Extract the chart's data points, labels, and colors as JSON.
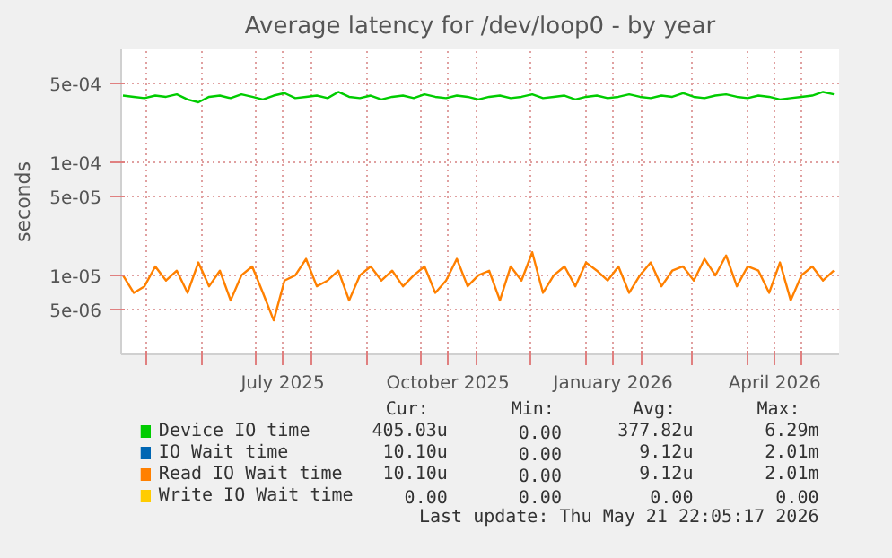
{
  "chart_data": {
    "type": "line",
    "title": "Average latency for /dev/loop0 - by year",
    "ylabel": "seconds",
    "log": "y",
    "grid": true,
    "legend": "bottom",
    "line_style": "solid",
    "marker": "none",
    "xlim": [
      "2025-04-17",
      "2026-05-21T22:05"
    ],
    "ylim": [
      2e-06,
      0.001
    ],
    "xticks": [
      {
        "value": "2025-05-01",
        "label": null
      },
      {
        "value": "2025-06-01",
        "label": null
      },
      {
        "value": "2025-07-01",
        "label": null
      },
      {
        "value": "2025-07-16",
        "label": "July 2025"
      },
      {
        "value": "2025-08-01",
        "label": null
      },
      {
        "value": "2025-09-01",
        "label": null
      },
      {
        "value": "2025-10-01",
        "label": null
      },
      {
        "value": "2025-10-16",
        "label": "October 2025"
      },
      {
        "value": "2025-11-01",
        "label": null
      },
      {
        "value": "2025-12-01",
        "label": null
      },
      {
        "value": "2026-01-01",
        "label": null
      },
      {
        "value": "2026-01-16",
        "label": "January 2026"
      },
      {
        "value": "2026-02-01",
        "label": null
      },
      {
        "value": "2026-03-01",
        "label": null
      },
      {
        "value": "2026-04-01",
        "label": null
      },
      {
        "value": "2026-04-16",
        "label": "April 2026"
      },
      {
        "value": "2026-05-01",
        "label": null
      }
    ],
    "yticks": [
      {
        "value": 5e-06,
        "label": "5e-06"
      },
      {
        "value": 1e-05,
        "label": "1e-05"
      },
      {
        "value": 5e-05,
        "label": "5e-05"
      },
      {
        "value": 0.0001,
        "label": "1e-04"
      },
      {
        "value": 0.0005,
        "label": "5e-04"
      }
    ],
    "x": [
      "2025-04-18",
      "2025-04-24",
      "2025-04-30",
      "2025-05-06",
      "2025-05-12",
      "2025-05-18",
      "2025-05-24",
      "2025-05-30",
      "2025-06-05",
      "2025-06-11",
      "2025-06-17",
      "2025-06-23",
      "2025-06-29",
      "2025-07-05",
      "2025-07-11",
      "2025-07-17",
      "2025-07-23",
      "2025-07-29",
      "2025-08-04",
      "2025-08-10",
      "2025-08-16",
      "2025-08-22",
      "2025-08-28",
      "2025-09-03",
      "2025-09-09",
      "2025-09-15",
      "2025-09-21",
      "2025-09-27",
      "2025-10-03",
      "2025-10-09",
      "2025-10-15",
      "2025-10-21",
      "2025-10-27",
      "2025-11-02",
      "2025-11-08",
      "2025-11-14",
      "2025-11-20",
      "2025-11-26",
      "2025-12-02",
      "2025-12-08",
      "2025-12-14",
      "2025-12-20",
      "2025-12-26",
      "2026-01-01",
      "2026-01-07",
      "2026-01-13",
      "2026-01-19",
      "2026-01-25",
      "2026-01-31",
      "2026-02-06",
      "2026-02-12",
      "2026-02-18",
      "2026-02-24",
      "2026-03-02",
      "2026-03-08",
      "2026-03-14",
      "2026-03-20",
      "2026-03-26",
      "2026-04-01",
      "2026-04-07",
      "2026-04-13",
      "2026-04-19",
      "2026-04-25",
      "2026-05-01",
      "2026-05-07",
      "2026-05-13",
      "2026-05-19"
    ],
    "series": [
      {
        "name": "Device IO time",
        "color": "#00cc00",
        "values": [
          0.00039,
          0.00038,
          0.00037,
          0.00039,
          0.00038,
          0.0004,
          0.00036,
          0.00034,
          0.00038,
          0.00039,
          0.00037,
          0.0004,
          0.00038,
          0.00036,
          0.00039,
          0.00041,
          0.00037,
          0.00038,
          0.00039,
          0.00037,
          0.00042,
          0.00038,
          0.00037,
          0.00039,
          0.00036,
          0.00038,
          0.00039,
          0.00037,
          0.0004,
          0.00038,
          0.00037,
          0.00039,
          0.00038,
          0.00036,
          0.00038,
          0.00039,
          0.00037,
          0.00038,
          0.0004,
          0.00037,
          0.00038,
          0.00039,
          0.00036,
          0.00038,
          0.00039,
          0.00037,
          0.00038,
          0.0004,
          0.00038,
          0.00037,
          0.00039,
          0.00038,
          0.00041,
          0.00038,
          0.00037,
          0.00039,
          0.0004,
          0.00038,
          0.00037,
          0.00039,
          0.00038,
          0.00036,
          0.00037,
          0.00038,
          0.00039,
          0.00042,
          0.0004
        ]
      },
      {
        "name": "IO Wait time",
        "color": "#0066b3",
        "values": [
          null,
          null,
          null,
          null,
          null,
          null,
          null,
          null,
          null,
          null,
          null,
          null,
          null,
          null,
          null,
          null,
          null,
          null,
          null,
          null,
          null,
          null,
          null,
          null,
          null,
          null,
          null,
          null,
          null,
          null,
          null,
          null,
          null,
          null,
          null,
          null,
          null,
          null,
          null,
          null,
          null,
          null,
          null,
          null,
          null,
          null,
          null,
          null,
          null,
          null,
          null,
          null,
          null,
          null,
          null,
          null,
          null,
          null,
          null,
          null,
          null,
          null,
          null,
          null,
          null,
          null,
          null
        ]
      },
      {
        "name": "Read IO Wait time",
        "color": "#ff8000",
        "values": [
          1e-05,
          7e-06,
          8e-06,
          1.2e-05,
          9e-06,
          1.1e-05,
          7e-06,
          1.3e-05,
          8e-06,
          1.1e-05,
          6e-06,
          1e-05,
          1.2e-05,
          7e-06,
          4e-06,
          9e-06,
          1e-05,
          1.4e-05,
          8e-06,
          9e-06,
          1.1e-05,
          6e-06,
          1e-05,
          1.2e-05,
          9e-06,
          1.1e-05,
          8e-06,
          1e-05,
          1.2e-05,
          7e-06,
          9e-06,
          1.4e-05,
          8e-06,
          1e-05,
          1.1e-05,
          6e-06,
          1.2e-05,
          9e-06,
          1.6e-05,
          7e-06,
          1e-05,
          1.2e-05,
          8e-06,
          1.3e-05,
          1.1e-05,
          9e-06,
          1.2e-05,
          7e-06,
          1e-05,
          1.3e-05,
          8e-06,
          1.1e-05,
          1.2e-05,
          9e-06,
          1.4e-05,
          1e-05,
          1.5e-05,
          8e-06,
          1.2e-05,
          1.1e-05,
          7e-06,
          1.3e-05,
          6e-06,
          1e-05,
          1.2e-05,
          9e-06,
          1.1e-05
        ]
      },
      {
        "name": "Write IO Wait time",
        "color": "#ffcc00",
        "values": [
          null,
          null,
          null,
          null,
          null,
          null,
          null,
          null,
          null,
          null,
          null,
          null,
          null,
          null,
          null,
          null,
          null,
          null,
          null,
          null,
          null,
          null,
          null,
          null,
          null,
          null,
          null,
          null,
          null,
          null,
          null,
          null,
          null,
          null,
          null,
          null,
          null,
          null,
          null,
          null,
          null,
          null,
          null,
          null,
          null,
          null,
          null,
          null,
          null,
          null,
          null,
          null,
          null,
          null,
          null,
          null,
          null,
          null,
          null,
          null,
          null,
          null,
          null,
          null,
          null,
          null,
          null
        ]
      }
    ],
    "annotations": [
      "Cur:",
      "Min:",
      "Avg:",
      "Max:",
      "405.03u",
      "0.00",
      "377.82u",
      "6.29m",
      "10.10u",
      "0.00",
      "9.12u",
      "2.01m",
      "10.10u",
      "0.00",
      "9.12u",
      "2.01m",
      "0.00",
      "0.00",
      "0.00",
      "0.00",
      "Last update: Thu May 21 22:05:17 2026"
    ]
  }
}
